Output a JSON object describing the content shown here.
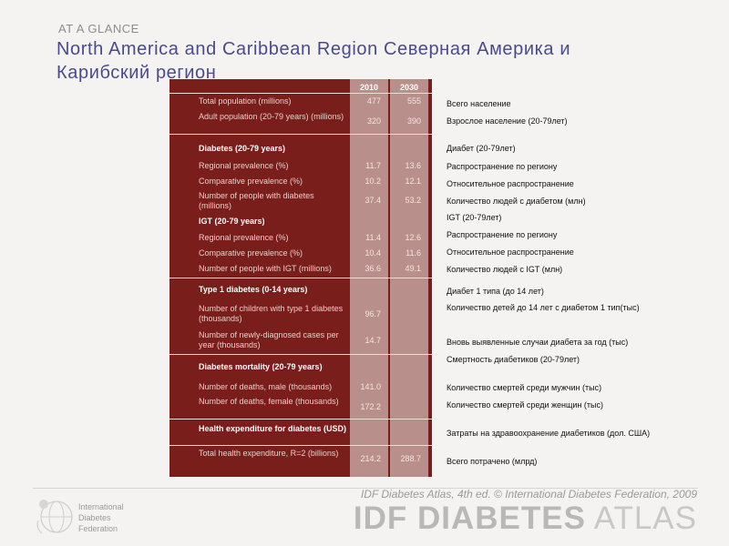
{
  "kicker": "AT A GLANCE",
  "title": "North America and Caribbean Region Северная Америка и Карибский регион",
  "table": {
    "col_2010": "2010",
    "col_2030": "2030",
    "rows": [
      {
        "label": "Total population (millions)",
        "v2010": "477",
        "v2030": "555",
        "ru": "Всего население"
      },
      {
        "label": "Adult population (20-79 years) (millions)",
        "v2010": "320",
        "v2030": "390",
        "ru": "Взрослое население (20-79лет)"
      },
      {
        "label": "Diabetes (20-79 years)",
        "v2010": "",
        "v2030": "",
        "ru": "Диабет (20-79лет)"
      },
      {
        "label": "Regional prevalence (%)",
        "v2010": "11.7",
        "v2030": "13.6",
        "ru": "Распространение по региону"
      },
      {
        "label": "Comparative prevalence (%)",
        "v2010": "10.2",
        "v2030": "12.1",
        "ru": "Относительное распространение"
      },
      {
        "label": "Number of people with diabetes (millions)",
        "v2010": "37.4",
        "v2030": "53.2",
        "ru": "Количество людей с диабетом (млн)"
      },
      {
        "label": "IGT (20-79 years)",
        "v2010": "",
        "v2030": "",
        "ru": "IGT (20-79лет)"
      },
      {
        "label": "Regional prevalence (%)",
        "v2010": "11.4",
        "v2030": "12.6",
        "ru": "Распространение по региону"
      },
      {
        "label": "Comparative prevalence (%)",
        "v2010": "10.4",
        "v2030": "11.6",
        "ru": "Относительное распространение"
      },
      {
        "label": "Number of people with IGT (millions)",
        "v2010": "36.6",
        "v2030": "49.1",
        "ru": "Количество людей с IGT (млн)"
      },
      {
        "label": "Type 1 diabetes (0-14 years)",
        "v2010": "",
        "v2030": "",
        "ru": "Диабет 1 типа (до 14 лет)"
      },
      {
        "label": "Number of children with type 1 diabetes (thousands)",
        "v2010": "96.7",
        "v2030": "",
        "ru": "Количество детей до 14 лет с диабетом 1 тип(тыс)"
      },
      {
        "label": "Number of newly-diagnosed cases per year (thousands)",
        "v2010": "14.7",
        "v2030": "",
        "ru": "Вновь выявленные случаи диабета за год (тыс)"
      },
      {
        "label": "Diabetes mortality (20-79 years)",
        "v2010": "",
        "v2030": "",
        "ru": "Смертность диабетиков (20-79лет)"
      },
      {
        "label": "Number of deaths, male (thousands)",
        "v2010": "141.0",
        "v2030": "",
        "ru": "Количество смертей среди мужчин (тыс)"
      },
      {
        "label": "Number of deaths, female (thousands)",
        "v2010": "172.2",
        "v2030": "",
        "ru": "Количество смертей среди женщин (тыс)"
      },
      {
        "label": "Health expenditure for diabetes (USD)",
        "v2010": "",
        "v2030": "",
        "ru": "Затраты на здравоохранение диабетиков (дол. США)"
      },
      {
        "label": "Total health expenditure, R=2 (billions)",
        "v2010": "214.2",
        "v2030": "288.7",
        "ru": "Всего потрачено (млрд)"
      }
    ]
  },
  "footer": {
    "org_line1": "International",
    "org_line2": "Diabetes",
    "org_line3": "Federation",
    "credit": "IDF Diabetes Atlas, 4th ed.  © International Diabetes Federation, 2009",
    "atlas_bold": "IDF DIABETES",
    "atlas_light": " ATLAS"
  }
}
